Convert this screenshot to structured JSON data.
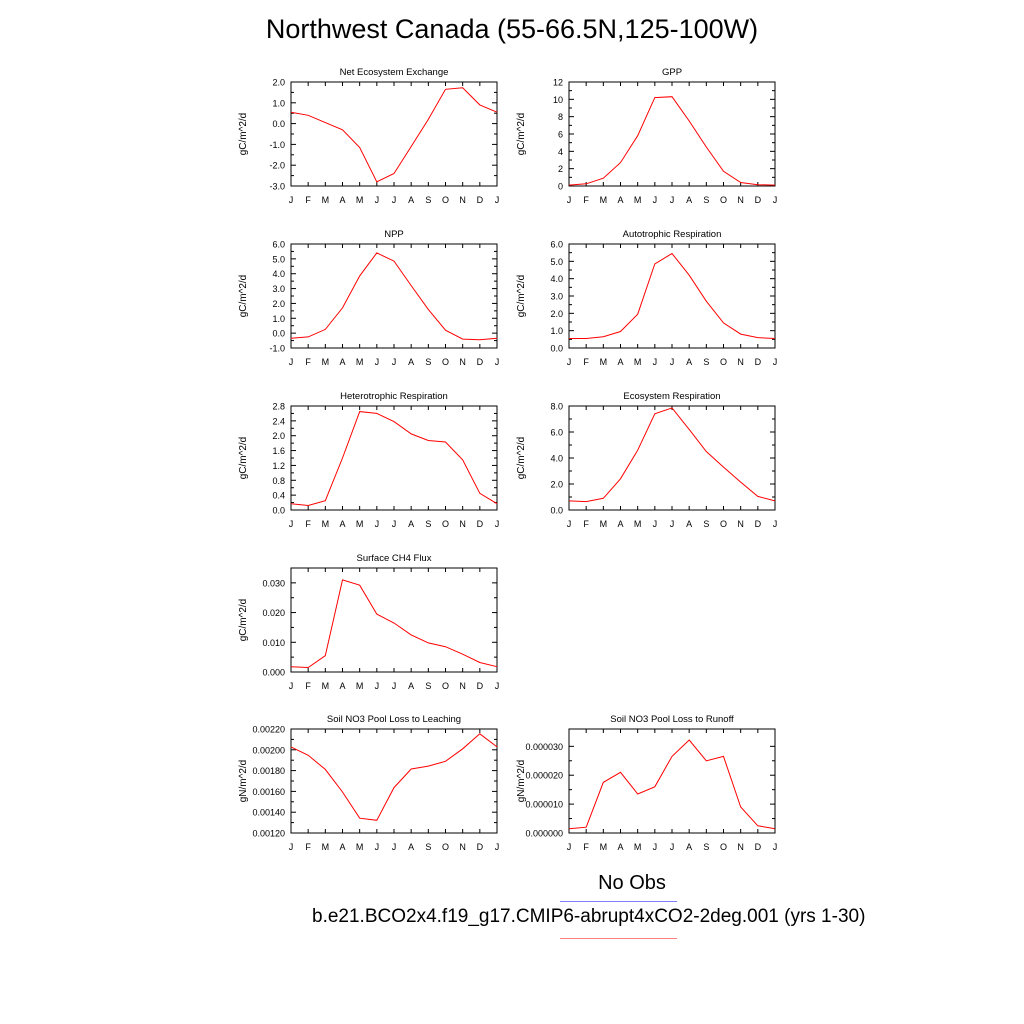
{
  "title": "Northwest Canada (55-66.5N,125-100W)",
  "legend": {
    "obs_label": "No Obs",
    "case_label": "b.e21.BCO2x4.f19_g17.CMIP6-abrupt4xCO2-2deg.001 (yrs 1-30)",
    "obs_color": "#8080ff",
    "case_color": "#ff8080"
  },
  "line_color": "#ff0000",
  "chart_data": [
    {
      "type": "line",
      "title": "Net Ecosystem Exchange",
      "ylabel": "gC/m^2/d",
      "x": [
        "J",
        "F",
        "M",
        "A",
        "M",
        "J",
        "J",
        "A",
        "S",
        "O",
        "N",
        "D",
        "J"
      ],
      "ylim": [
        -3.0,
        2.0
      ],
      "yticks": [
        "2.0",
        "1.0",
        "0.0",
        "-1.0",
        "-2.0",
        "-3.0"
      ],
      "ytick_values": [
        2.0,
        1.0,
        0.0,
        -1.0,
        -2.0,
        -3.0
      ],
      "values": [
        0.55,
        0.4,
        0.05,
        -0.3,
        -1.15,
        -2.8,
        -2.4,
        -1.1,
        0.2,
        1.65,
        1.72,
        0.9,
        0.55
      ]
    },
    {
      "type": "line",
      "title": "GPP",
      "ylabel": "gC/m^2/d",
      "x": [
        "J",
        "F",
        "M",
        "A",
        "M",
        "J",
        "J",
        "A",
        "S",
        "O",
        "N",
        "D",
        "J"
      ],
      "ylim": [
        0,
        12
      ],
      "yticks": [
        "12",
        "10",
        "8",
        "6",
        "4",
        "2",
        "0"
      ],
      "ytick_values": [
        12,
        10,
        8,
        6,
        4,
        2,
        0
      ],
      "values": [
        0.1,
        0.25,
        0.9,
        2.7,
        5.8,
        10.2,
        10.3,
        7.5,
        4.5,
        1.7,
        0.4,
        0.15,
        0.1
      ]
    },
    {
      "type": "line",
      "title": "NPP",
      "ylabel": "gC/m^2/d",
      "x": [
        "J",
        "F",
        "M",
        "A",
        "M",
        "J",
        "J",
        "A",
        "S",
        "O",
        "N",
        "D",
        "J"
      ],
      "ylim": [
        -1.0,
        6.0
      ],
      "yticks": [
        "6.0",
        "5.0",
        "4.0",
        "3.0",
        "2.0",
        "1.0",
        "0.0",
        "-1.0"
      ],
      "ytick_values": [
        6.0,
        5.0,
        4.0,
        3.0,
        2.0,
        1.0,
        0.0,
        -1.0
      ],
      "values": [
        -0.35,
        -0.25,
        0.25,
        1.7,
        3.85,
        5.4,
        4.85,
        3.2,
        1.6,
        0.2,
        -0.4,
        -0.45,
        -0.35
      ]
    },
    {
      "type": "line",
      "title": "Autotrophic Respiration",
      "ylabel": "gC/m^2/d",
      "x": [
        "J",
        "F",
        "M",
        "A",
        "M",
        "J",
        "J",
        "A",
        "S",
        "O",
        "N",
        "D",
        "J"
      ],
      "ylim": [
        0.0,
        6.0
      ],
      "yticks": [
        "6.0",
        "5.0",
        "4.0",
        "3.0",
        "2.0",
        "1.0",
        "0.0"
      ],
      "ytick_values": [
        6.0,
        5.0,
        4.0,
        3.0,
        2.0,
        1.0,
        0.0
      ],
      "values": [
        0.55,
        0.55,
        0.65,
        0.95,
        1.95,
        4.85,
        5.45,
        4.2,
        2.7,
        1.45,
        0.8,
        0.6,
        0.55
      ]
    },
    {
      "type": "line",
      "title": "Heterotrophic Respiration",
      "ylabel": "gC/m^2/d",
      "x": [
        "J",
        "F",
        "M",
        "A",
        "M",
        "J",
        "J",
        "A",
        "S",
        "O",
        "N",
        "D",
        "J"
      ],
      "ylim": [
        0.0,
        2.8
      ],
      "yticks": [
        "2.8",
        "2.4",
        "2.0",
        "1.6",
        "1.2",
        "0.8",
        "0.4",
        "0.0"
      ],
      "ytick_values": [
        2.8,
        2.4,
        2.0,
        1.6,
        1.2,
        0.8,
        0.4,
        0.0
      ],
      "values": [
        0.17,
        0.12,
        0.25,
        1.4,
        2.65,
        2.6,
        2.38,
        2.05,
        1.87,
        1.83,
        1.35,
        0.45,
        0.17
      ]
    },
    {
      "type": "line",
      "title": "Ecosystem Respiration",
      "ylabel": "gC/m^2/d",
      "x": [
        "J",
        "F",
        "M",
        "A",
        "M",
        "J",
        "J",
        "A",
        "S",
        "O",
        "N",
        "D",
        "J"
      ],
      "ylim": [
        0.0,
        8.0
      ],
      "yticks": [
        "8.0",
        "6.0",
        "4.0",
        "2.0",
        "0.0"
      ],
      "ytick_values": [
        8.0,
        6.0,
        4.0,
        2.0,
        0.0
      ],
      "values": [
        0.7,
        0.65,
        0.9,
        2.4,
        4.6,
        7.4,
        7.85,
        6.2,
        4.5,
        3.3,
        2.15,
        1.05,
        0.7
      ]
    },
    {
      "type": "line",
      "title": "Surface CH4 Flux",
      "ylabel": "gC/m^2/d",
      "x": [
        "J",
        "F",
        "M",
        "A",
        "M",
        "J",
        "J",
        "A",
        "S",
        "O",
        "N",
        "D",
        "J"
      ],
      "ylim": [
        0.0,
        0.035
      ],
      "yticks": [
        "0.030",
        "0.020",
        "0.010",
        "0.000"
      ],
      "ytick_values": [
        0.03,
        0.02,
        0.01,
        0.0
      ],
      "values": [
        0.0018,
        0.0015,
        0.0055,
        0.031,
        0.0292,
        0.0195,
        0.0165,
        0.0125,
        0.0098,
        0.0085,
        0.006,
        0.0032,
        0.0018
      ]
    },
    {
      "type": "line",
      "title": "Soil NO3 Pool Loss to Leaching",
      "ylabel": "gN/m^2/d",
      "x": [
        "J",
        "F",
        "M",
        "A",
        "M",
        "J",
        "J",
        "A",
        "S",
        "O",
        "N",
        "D",
        "J"
      ],
      "ylim": [
        0.0012,
        0.0022
      ],
      "yticks": [
        "0.00220",
        "0.00200",
        "0.00180",
        "0.00160",
        "0.00140",
        "0.00120"
      ],
      "ytick_values": [
        0.0022,
        0.002,
        0.0018,
        0.0016,
        0.0014,
        0.0012
      ],
      "values": [
        0.002028,
        0.001947,
        0.001812,
        0.001594,
        0.001342,
        0.001322,
        0.001637,
        0.001815,
        0.001843,
        0.001889,
        0.00201,
        0.002154,
        0.002028
      ]
    },
    {
      "type": "line",
      "title": "Soil NO3 Pool Loss to Runoff",
      "ylabel": "gN/m^2/d",
      "x": [
        "J",
        "F",
        "M",
        "A",
        "M",
        "J",
        "J",
        "A",
        "S",
        "O",
        "N",
        "D",
        "J"
      ],
      "ylim": [
        0.0,
        3.6e-05
      ],
      "yticks": [
        "0.000030",
        "0.000020",
        "0.000010",
        "0.000000"
      ],
      "ytick_values": [
        3e-05,
        2e-05,
        1e-05,
        0.0
      ],
      "values": [
        1.5e-06,
        2e-06,
        1.75e-05,
        2.1e-05,
        1.35e-05,
        1.6e-05,
        2.65e-05,
        3.22e-05,
        2.5e-05,
        2.65e-05,
        9e-06,
        2.5e-06,
        1.5e-06
      ]
    }
  ]
}
